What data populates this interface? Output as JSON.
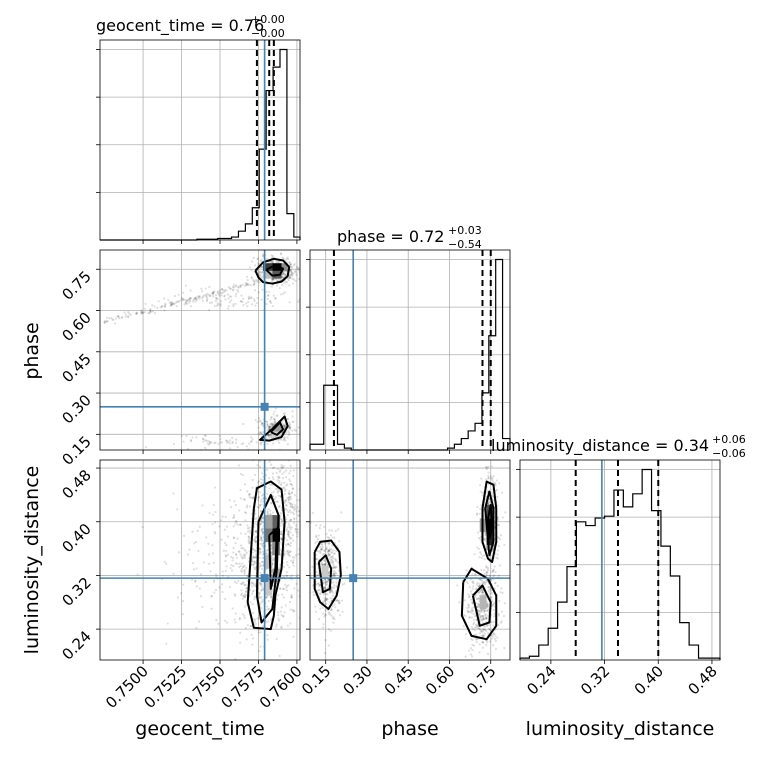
{
  "chart_data": {
    "type": "corner",
    "parameters": [
      "geocent_time",
      "phase",
      "luminosity_distance"
    ],
    "truth_color": "#4682b4",
    "truths": {
      "geocent_time": 0.7579,
      "phase": 0.25,
      "luminosity_distance": 0.316
    },
    "ranges": {
      "geocent_time": [
        0.7472,
        0.7602
      ],
      "phase": [
        0.093,
        0.82
      ],
      "luminosity_distance": [
        0.194,
        0.492
      ]
    },
    "ticks": {
      "geocent_time": {
        "values": [
          0.75,
          0.7525,
          0.755,
          0.7575,
          0.76
        ],
        "labels": [
          "0.7500",
          "0.7525",
          "0.7550",
          "0.7575",
          "0.7600"
        ]
      },
      "phase": {
        "values": [
          0.15,
          0.3,
          0.45,
          0.6,
          0.75
        ],
        "labels": [
          "0.15",
          "0.30",
          "0.45",
          "0.60",
          "0.75"
        ]
      },
      "luminosity_distance": {
        "values": [
          0.24,
          0.32,
          0.4,
          0.48
        ],
        "labels": [
          "0.24",
          "0.32",
          "0.40",
          "0.48"
        ]
      }
    },
    "titles": {
      "geocent_time": {
        "text": "geocent_time = 0.76",
        "plus": "+0.00",
        "minus": "−0.00"
      },
      "phase": {
        "text": "phase = 0.72",
        "plus": "+0.03",
        "minus": "−0.54"
      },
      "luminosity_distance": {
        "text": "luminosity_distance = 0.34",
        "plus": "+0.06",
        "minus": "−0.06"
      }
    },
    "quantiles": {
      "geocent_time": [
        0.7574,
        0.7582,
        0.7585
      ],
      "phase": [
        0.18,
        0.72,
        0.75
      ],
      "luminosity_distance": [
        0.277,
        0.34,
        0.4
      ]
    },
    "histograms": {
      "geocent_time": {
        "edges": [
          0.7472,
          0.74765,
          0.7481,
          0.74855,
          0.749,
          0.74945,
          0.7499,
          0.75035,
          0.7508,
          0.75125,
          0.7517,
          0.75215,
          0.7526,
          0.75305,
          0.7535,
          0.75395,
          0.7544,
          0.75485,
          0.7553,
          0.75575,
          0.7562,
          0.75665,
          0.7571,
          0.75755,
          0.758,
          0.75845,
          0.7589,
          0.75935,
          0.7598,
          0.7602
        ],
        "counts": [
          0,
          0,
          0,
          0,
          0,
          0,
          0,
          0,
          0,
          0,
          0,
          0,
          0,
          0,
          0.5,
          0.5,
          0.5,
          1,
          1,
          2,
          6,
          11,
          22,
          62,
          102,
          118,
          130,
          18,
          2
        ]
      },
      "phase": {
        "edges": [
          0.093,
          0.118,
          0.143,
          0.168,
          0.193,
          0.218,
          0.243,
          0.268,
          0.293,
          0.318,
          0.343,
          0.368,
          0.393,
          0.418,
          0.443,
          0.468,
          0.493,
          0.518,
          0.543,
          0.568,
          0.593,
          0.618,
          0.643,
          0.668,
          0.693,
          0.718,
          0.743,
          0.768,
          0.793,
          0.82
        ],
        "counts": [
          1.5,
          1.5,
          17,
          17,
          1.5,
          0.5,
          0,
          0,
          0,
          0,
          0,
          0,
          0,
          0,
          0,
          0,
          0,
          0,
          0,
          0,
          0.5,
          1.5,
          3,
          5,
          7,
          15,
          30,
          50,
          3
        ]
      },
      "luminosity_distance": {
        "edges": [
          0.194,
          0.208,
          0.222,
          0.236,
          0.25,
          0.264,
          0.278,
          0.292,
          0.306,
          0.32,
          0.334,
          0.348,
          0.362,
          0.376,
          0.39,
          0.404,
          0.418,
          0.432,
          0.446,
          0.46,
          0.474,
          0.492
        ],
        "counts": [
          1,
          2,
          8,
          17,
          31,
          50,
          74,
          72,
          76,
          77,
          91,
          82,
          89,
          102,
          80,
          61,
          45,
          20,
          8,
          1,
          1
        ]
      }
    },
    "contours": {
      "phase_vs_geocent_time": [
        {
          "label": "outer-upper",
          "x": [
            0.7573,
            0.7578,
            0.7585,
            0.7591,
            0.7595,
            0.7594,
            0.759,
            0.7584,
            0.7578,
            0.7575,
            0.7573
          ],
          "y": [
            0.745,
            0.775,
            0.788,
            0.782,
            0.758,
            0.725,
            0.705,
            0.698,
            0.703,
            0.72,
            0.745
          ]
        },
        {
          "label": "inner-upper",
          "x": [
            0.758,
            0.7586,
            0.7591,
            0.7589,
            0.7584,
            0.758
          ],
          "y": [
            0.748,
            0.765,
            0.752,
            0.73,
            0.727,
            0.748
          ]
        },
        {
          "label": "outer-lower",
          "x": [
            0.7578,
            0.7585,
            0.7592,
            0.7594,
            0.759,
            0.7582,
            0.7576,
            0.7578
          ],
          "y": [
            0.14,
            0.175,
            0.215,
            0.18,
            0.14,
            0.127,
            0.13,
            0.14
          ]
        },
        {
          "label": "inner-lower",
          "x": [
            0.7583,
            0.7589,
            0.7591,
            0.7587,
            0.7583
          ],
          "y": [
            0.158,
            0.193,
            0.168,
            0.148,
            0.158
          ]
        }
      ],
      "luminosity_distance_vs_geocent_time": [
        {
          "label": "outer",
          "x": [
            0.7572,
            0.7574,
            0.7583,
            0.759,
            0.7592,
            0.759,
            0.7586,
            0.7585,
            0.7583,
            0.7572,
            0.7568,
            0.757,
            0.7572
          ],
          "y": [
            0.42,
            0.45,
            0.46,
            0.448,
            0.4,
            0.33,
            0.29,
            0.26,
            0.24,
            0.242,
            0.28,
            0.35,
            0.42
          ]
        },
        {
          "label": "middle",
          "x": [
            0.7575,
            0.7583,
            0.7588,
            0.7587,
            0.7584,
            0.7577,
            0.7574,
            0.7575
          ],
          "y": [
            0.4,
            0.44,
            0.41,
            0.33,
            0.27,
            0.25,
            0.29,
            0.4
          ]
        },
        {
          "label": "inner",
          "x": [
            0.7582,
            0.7587,
            0.7586,
            0.7583,
            0.7582
          ],
          "y": [
            0.38,
            0.39,
            0.33,
            0.3,
            0.38
          ]
        }
      ],
      "luminosity_distance_vs_phase": [
        {
          "label": "left-outer",
          "x": [
            0.11,
            0.13,
            0.17,
            0.2,
            0.205,
            0.19,
            0.16,
            0.13,
            0.11,
            0.11
          ],
          "y": [
            0.355,
            0.37,
            0.372,
            0.355,
            0.32,
            0.29,
            0.27,
            0.28,
            0.3,
            0.355
          ]
        },
        {
          "label": "left-inner",
          "x": [
            0.125,
            0.15,
            0.17,
            0.165,
            0.14,
            0.125
          ],
          "y": [
            0.34,
            0.35,
            0.33,
            0.3,
            0.295,
            0.34
          ]
        },
        {
          "label": "right-outer-upper",
          "x": [
            0.72,
            0.735,
            0.76,
            0.77,
            0.77,
            0.755,
            0.74,
            0.72,
            0.72
          ],
          "y": [
            0.42,
            0.46,
            0.455,
            0.42,
            0.37,
            0.34,
            0.345,
            0.37,
            0.42
          ]
        },
        {
          "label": "right-middle-upper",
          "x": [
            0.73,
            0.745,
            0.76,
            0.76,
            0.745,
            0.73
          ],
          "y": [
            0.42,
            0.445,
            0.42,
            0.37,
            0.35,
            0.42
          ]
        },
        {
          "label": "right-inner-upper",
          "x": [
            0.74,
            0.75,
            0.755,
            0.745,
            0.74
          ],
          "y": [
            0.405,
            0.425,
            0.39,
            0.375,
            0.405
          ]
        },
        {
          "label": "right-outer-lower",
          "x": [
            0.65,
            0.68,
            0.74,
            0.77,
            0.77,
            0.735,
            0.68,
            0.645,
            0.65
          ],
          "y": [
            0.31,
            0.33,
            0.315,
            0.29,
            0.245,
            0.225,
            0.23,
            0.26,
            0.31
          ]
        },
        {
          "label": "right-inner-lower",
          "x": [
            0.685,
            0.72,
            0.75,
            0.745,
            0.71,
            0.685
          ],
          "y": [
            0.29,
            0.305,
            0.28,
            0.25,
            0.245,
            0.29
          ]
        }
      ]
    },
    "density_cells": {
      "phase_vs_geocent_time": [
        {
          "x": 0.7584,
          "y": 0.744,
          "w": 0.0006,
          "h": 0.028,
          "shade": "#000000"
        },
        {
          "x": 0.7578,
          "y": 0.744,
          "w": 0.0006,
          "h": 0.028,
          "shade": "#3a3a3a"
        },
        {
          "x": 0.7584,
          "y": 0.716,
          "w": 0.0006,
          "h": 0.028,
          "shade": "#5a5a5a"
        },
        {
          "x": 0.7578,
          "y": 0.716,
          "w": 0.0006,
          "h": 0.028,
          "shade": "#bdbdbd"
        },
        {
          "x": 0.759,
          "y": 0.744,
          "w": 0.0004,
          "h": 0.028,
          "shade": "#8a8a8a"
        },
        {
          "x": 0.7584,
          "y": 0.16,
          "w": 0.0006,
          "h": 0.028,
          "shade": "#9a9a9a"
        },
        {
          "x": 0.7584,
          "y": 0.132,
          "w": 0.0006,
          "h": 0.028,
          "shade": "#d0d0d0"
        }
      ],
      "luminosity_distance_vs_geocent_time": [
        {
          "x": 0.7584,
          "y": 0.37,
          "w": 0.0005,
          "h": 0.02,
          "shade": "#000000"
        },
        {
          "x": 0.7579,
          "y": 0.37,
          "w": 0.0005,
          "h": 0.02,
          "shade": "#777777"
        },
        {
          "x": 0.7584,
          "y": 0.39,
          "w": 0.0005,
          "h": 0.02,
          "shade": "#5e5e5e"
        },
        {
          "x": 0.7579,
          "y": 0.39,
          "w": 0.0005,
          "h": 0.02,
          "shade": "#a0a0a0"
        },
        {
          "x": 0.7584,
          "y": 0.35,
          "w": 0.0005,
          "h": 0.02,
          "shade": "#8a8a8a"
        },
        {
          "x": 0.7579,
          "y": 0.33,
          "w": 0.0005,
          "h": 0.02,
          "shade": "#bbbbbb"
        },
        {
          "x": 0.7584,
          "y": 0.31,
          "w": 0.0005,
          "h": 0.02,
          "shade": "#a8a8a8"
        },
        {
          "x": 0.7579,
          "y": 0.29,
          "w": 0.0005,
          "h": 0.02,
          "shade": "#c8c8c8"
        }
      ],
      "luminosity_distance_vs_phase": [
        {
          "x": 0.735,
          "y": 0.385,
          "w": 0.025,
          "h": 0.02,
          "shade": "#000000"
        },
        {
          "x": 0.735,
          "y": 0.365,
          "w": 0.025,
          "h": 0.02,
          "shade": "#202020"
        },
        {
          "x": 0.735,
          "y": 0.405,
          "w": 0.025,
          "h": 0.02,
          "shade": "#4d4d4d"
        },
        {
          "x": 0.71,
          "y": 0.385,
          "w": 0.025,
          "h": 0.02,
          "shade": "#9a9a9a"
        },
        {
          "x": 0.71,
          "y": 0.27,
          "w": 0.025,
          "h": 0.02,
          "shade": "#b5b5b5"
        },
        {
          "x": 0.135,
          "y": 0.315,
          "w": 0.025,
          "h": 0.02,
          "shade": "#c8c8c8"
        }
      ]
    },
    "scatter_clusters": {
      "phase_vs_geocent_time": [
        {
          "x": 0.7586,
          "y": 0.745,
          "sx": 0.0007,
          "sy": 0.025,
          "n": 420
        },
        {
          "x": 0.7586,
          "y": 0.17,
          "sx": 0.0006,
          "sy": 0.025,
          "n": 260
        },
        {
          "x": 0.7555,
          "y": 0.64,
          "sx": 0.002,
          "sy": 0.02,
          "n": 110
        },
        {
          "x": 0.755,
          "y": 0.12,
          "sx": 0.0018,
          "sy": 0.015,
          "n": 60
        }
      ],
      "luminosity_distance_vs_geocent_time": [
        {
          "x": 0.7581,
          "y": 0.36,
          "sx": 0.001,
          "sy": 0.055,
          "n": 950
        },
        {
          "x": 0.7555,
          "y": 0.34,
          "sx": 0.002,
          "sy": 0.05,
          "n": 180
        },
        {
          "x": 0.7595,
          "y": 0.43,
          "sx": 0.0004,
          "sy": 0.03,
          "n": 90
        }
      ],
      "luminosity_distance_vs_phase": [
        {
          "x": 0.745,
          "y": 0.4,
          "sx": 0.018,
          "sy": 0.035,
          "n": 420
        },
        {
          "x": 0.72,
          "y": 0.27,
          "sx": 0.03,
          "sy": 0.03,
          "n": 380
        },
        {
          "x": 0.155,
          "y": 0.32,
          "sx": 0.025,
          "sy": 0.035,
          "n": 380
        }
      ]
    },
    "xlabel": "",
    "ylabel": ""
  }
}
